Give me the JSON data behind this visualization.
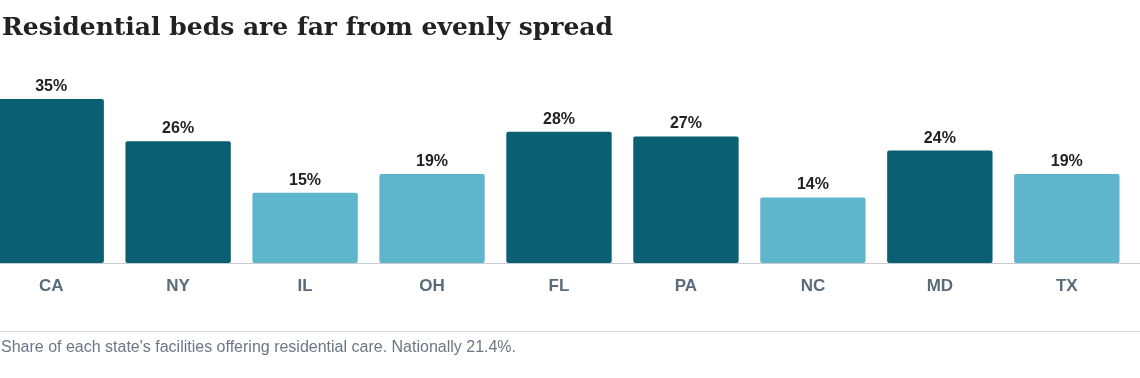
{
  "chart_data": {
    "type": "bar",
    "title": "Residential beds are far from evenly spread",
    "categories": [
      "CA",
      "NY",
      "IL",
      "OH",
      "FL",
      "PA",
      "NC",
      "MD",
      "TX"
    ],
    "values": [
      35,
      26,
      15,
      19,
      28,
      27,
      14,
      24,
      19
    ],
    "colors": [
      "#0b5f73",
      "#0b5f73",
      "#5eb5cc",
      "#5eb5cc",
      "#0b5f73",
      "#0b5f73",
      "#5eb5cc",
      "#0b5f73",
      "#5eb5cc"
    ],
    "value_labels": [
      "35%",
      "26%",
      "15%",
      "19%",
      "28%",
      "27%",
      "14%",
      "24%",
      "19%"
    ],
    "annotations": [
      "Share of each state's facilities offering residential care. Nationally 21.4%."
    ]
  }
}
